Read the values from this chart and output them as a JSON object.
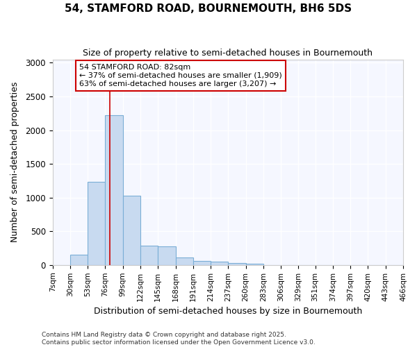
{
  "title": "54, STAMFORD ROAD, BOURNEMOUTH, BH6 5DS",
  "subtitle": "Size of property relative to semi-detached houses in Bournemouth",
  "xlabel": "Distribution of semi-detached houses by size in Bournemouth",
  "ylabel": "Number of semi-detached properties",
  "bar_color": "#c8daf0",
  "bar_edge_color": "#7aaed6",
  "background_color": "#ffffff",
  "plot_bg_color": "#f5f7ff",
  "grid_color": "#ffffff",
  "vline_x": 82,
  "vline_color": "#cc0000",
  "annotation_text": "54 STAMFORD ROAD: 82sqm\n← 37% of semi-detached houses are smaller (1,909)\n63% of semi-detached houses are larger (3,207) →",
  "annotation_box_facecolor": "#ffffff",
  "annotation_border_color": "#cc0000",
  "footer_text": "Contains HM Land Registry data © Crown copyright and database right 2025.\nContains public sector information licensed under the Open Government Licence v3.0.",
  "bins": [
    7,
    30,
    53,
    76,
    99,
    122,
    145,
    168,
    191,
    214,
    237,
    260,
    283,
    306,
    329,
    351,
    374,
    397,
    420,
    443,
    466
  ],
  "counts": [
    0,
    155,
    1230,
    2220,
    1030,
    290,
    280,
    110,
    55,
    50,
    30,
    15,
    0,
    0,
    0,
    0,
    0,
    0,
    0,
    0
  ],
  "ylim": [
    0,
    3050
  ],
  "yticks": [
    0,
    500,
    1000,
    1500,
    2000,
    2500,
    3000
  ]
}
